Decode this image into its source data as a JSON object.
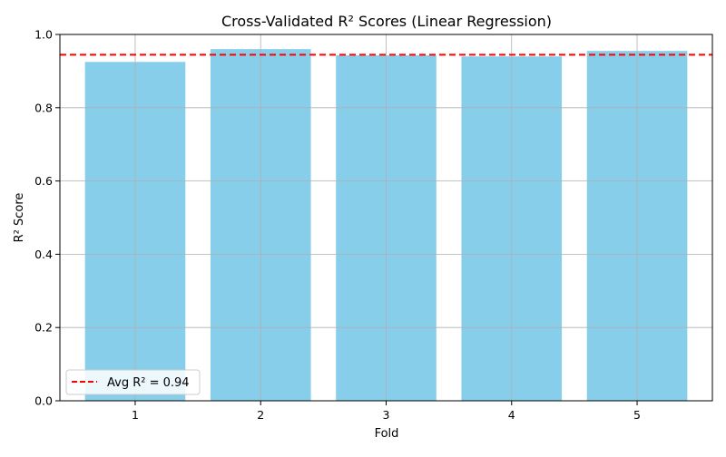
{
  "chart_data": {
    "type": "bar",
    "title": "Cross-Validated R² Scores (Linear Regression)",
    "xlabel": "Fold",
    "ylabel": "R² Score",
    "categories": [
      "1",
      "2",
      "3",
      "4",
      "5"
    ],
    "values": [
      0.925,
      0.96,
      0.943,
      0.94,
      0.955
    ],
    "ylim": [
      0,
      1.0
    ],
    "yticks": [
      0.0,
      0.2,
      0.4,
      0.6,
      0.8,
      1.0
    ],
    "ytick_labels": [
      "0.0",
      "0.2",
      "0.4",
      "0.6",
      "0.8",
      "1.0"
    ],
    "grid": true,
    "bar_color": "#87CEEB",
    "grid_color": "#b0b0b0",
    "reference_line": {
      "value": 0.9446,
      "color": "#ff0000",
      "style": "dashed",
      "label": "Avg R² = 0.94"
    },
    "legend": {
      "position": "lower-left",
      "entries": [
        "Avg R² = 0.94"
      ]
    }
  }
}
